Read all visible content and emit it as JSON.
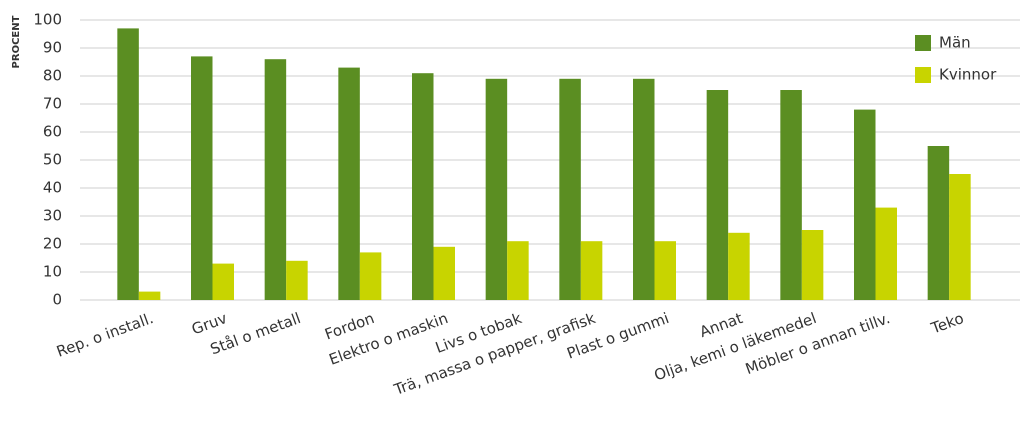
{
  "chart_data": {
    "type": "bar",
    "ylabel": "PROCENT",
    "categories": [
      "Rep. o install.",
      "Gruv",
      "Stål o metall",
      "Fordon",
      "Elektro o maskin",
      "Livs o tobak",
      "Trä, massa o papper, grafisk",
      "Plast o gummi",
      "Annat",
      "Olja, kemi o läkemedel",
      "Möbler o annan tillv.",
      "Teko"
    ],
    "series": [
      {
        "name": "Män",
        "color": "#5b8e22",
        "values": [
          97,
          87,
          86,
          83,
          81,
          79,
          79,
          79,
          75,
          75,
          68,
          55
        ]
      },
      {
        "name": "Kvinnor",
        "color": "#c8d400",
        "values": [
          3,
          13,
          14,
          17,
          19,
          21,
          21,
          21,
          24,
          25,
          33,
          45
        ]
      }
    ],
    "ylim": [
      0,
      100
    ],
    "yticks": [
      0,
      10,
      20,
      30,
      40,
      50,
      60,
      70,
      80,
      90,
      100
    ],
    "grid": true,
    "legend": "upper right"
  }
}
